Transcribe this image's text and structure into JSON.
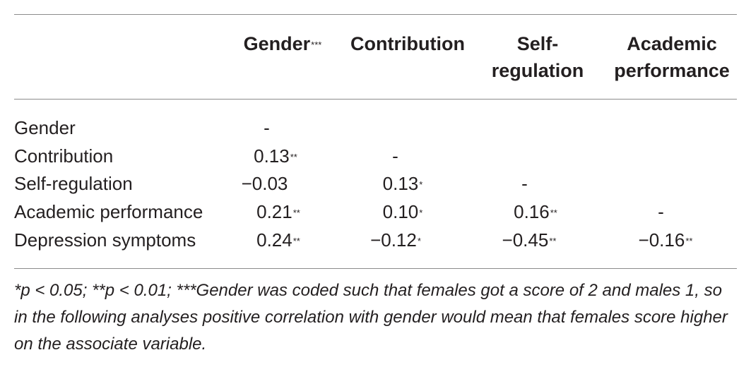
{
  "columns": {
    "gender": {
      "label": "Gender",
      "mark": "***"
    },
    "contribution": {
      "label": "Contribution"
    },
    "self_regulation": {
      "line1": "Self-",
      "line2": "regulation"
    },
    "academic": {
      "line1": "Academic",
      "line2": "performance"
    }
  },
  "rows": [
    {
      "label": "Gender",
      "cells": [
        {
          "v": "-",
          "m": ""
        }
      ]
    },
    {
      "label": "Contribution",
      "cells": [
        {
          "v": "0.13",
          "m": "**"
        },
        {
          "v": "-",
          "m": ""
        }
      ]
    },
    {
      "label": "Self-regulation",
      "cells": [
        {
          "v": "−0.03",
          "m": ""
        },
        {
          "v": "0.13",
          "m": "*"
        },
        {
          "v": "-",
          "m": ""
        }
      ]
    },
    {
      "label": "Academic performance",
      "cells": [
        {
          "v": "0.21",
          "m": "**"
        },
        {
          "v": "0.10",
          "m": "*"
        },
        {
          "v": "0.16",
          "m": "**"
        },
        {
          "v": "-",
          "m": ""
        }
      ]
    },
    {
      "label": "Depression symptoms",
      "cells": [
        {
          "v": "0.24",
          "m": "**"
        },
        {
          "v": "−0.12",
          "m": "*"
        },
        {
          "v": "−0.45",
          "m": "**"
        },
        {
          "v": "−0.16",
          "m": "**"
        }
      ]
    }
  ],
  "footnote": "*p < 0.05; **p < 0.01; ***Gender was coded such that females got a score of 2 and males 1, so in the following analyses positive correlation with gender would mean that females score higher on the associate variable."
}
